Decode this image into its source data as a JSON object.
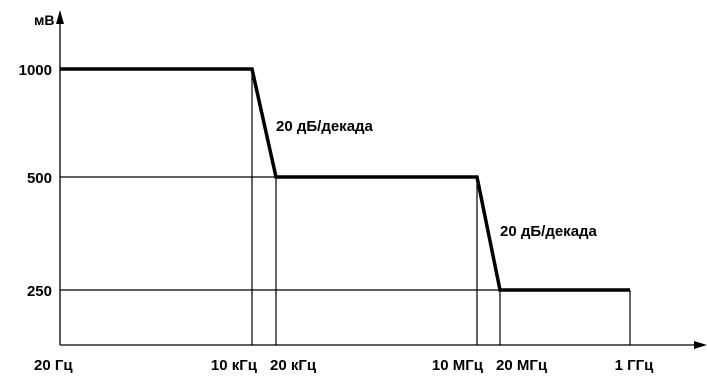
{
  "chart_data": {
    "type": "line",
    "title": "",
    "xlabel": "",
    "ylabel": "мВ",
    "y_unit": "мВ",
    "x_ticks": [
      "20 Гц",
      "10 кГц",
      "20 кГц",
      "10 МГц",
      "20 МГц",
      "1 ГГц"
    ],
    "y_ticks": [
      "1000",
      "500",
      "250"
    ],
    "series": [
      {
        "x": [
          "20 Гц",
          "10 кГц",
          "20 кГц",
          "10 МГц",
          "20 МГц",
          "1 ГГц"
        ],
        "y": [
          1000,
          1000,
          500,
          500,
          250,
          250
        ]
      }
    ],
    "annotations": [
      {
        "text": "20 дБ/декада",
        "segment": "10 кГц–20 кГц"
      },
      {
        "text": "20 дБ/декада",
        "segment": "10 МГц–20 МГц"
      }
    ],
    "grid": false,
    "legend": "none"
  }
}
